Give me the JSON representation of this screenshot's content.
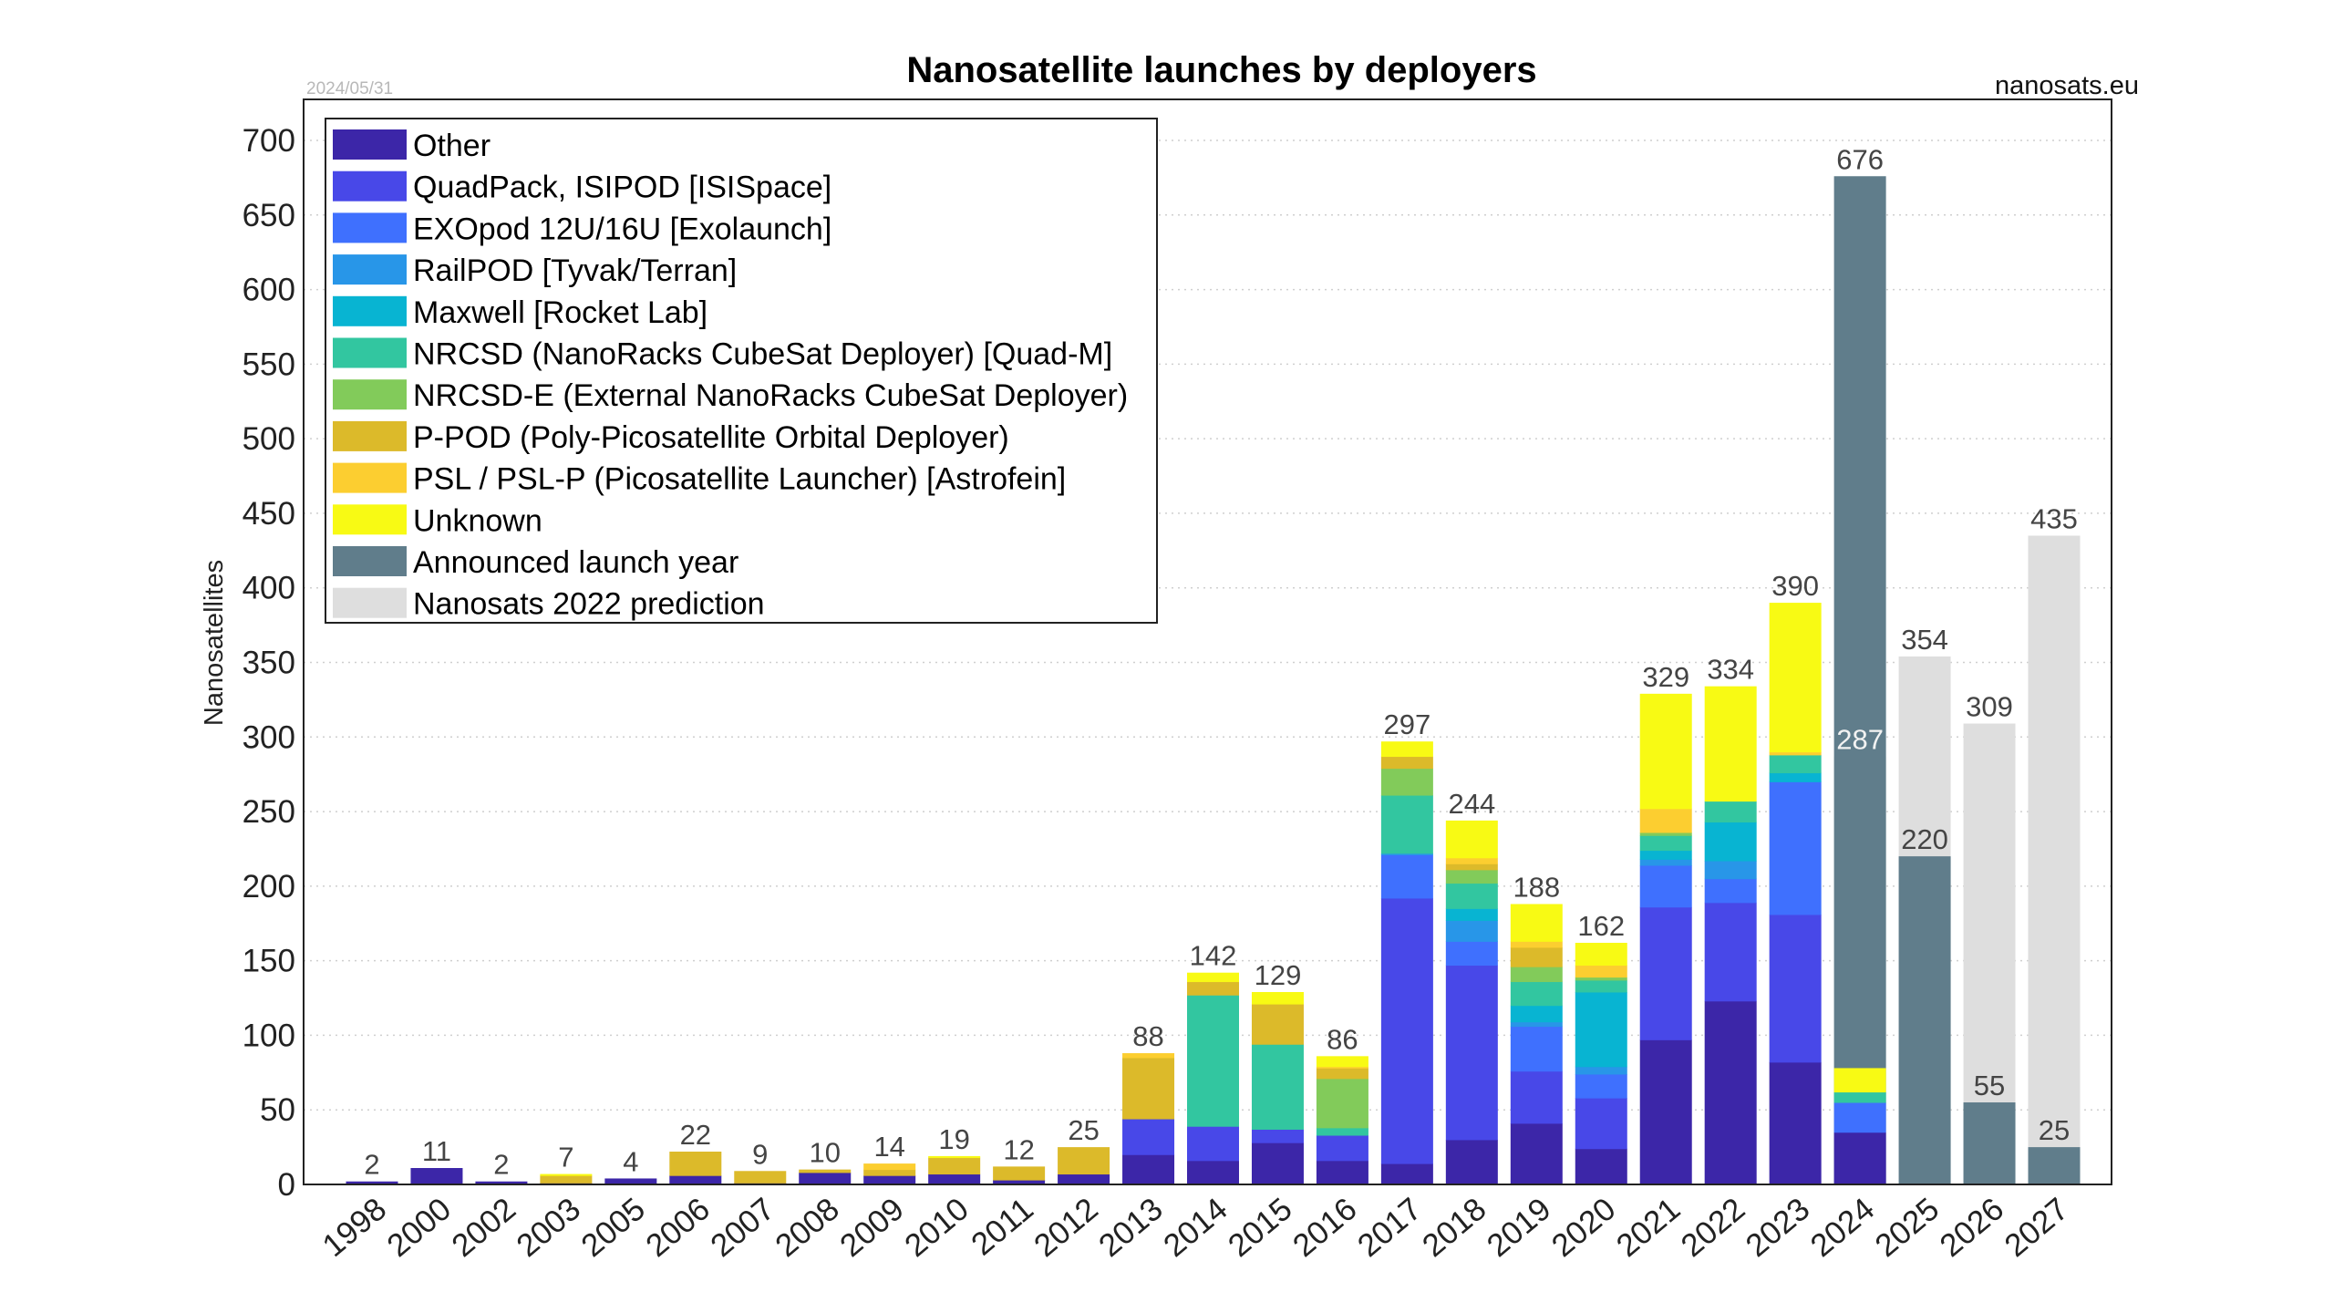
{
  "chart_data": {
    "type": "bar",
    "stacked": true,
    "title": "Nanosatellite launches by deployers",
    "date": "2024/05/31",
    "source": "nanosats.eu",
    "xlabel": "",
    "ylabel": "Nanosatellites",
    "ylim": [
      0,
      725
    ],
    "yticks": [
      0,
      50,
      100,
      150,
      200,
      250,
      300,
      350,
      400,
      450,
      500,
      550,
      600,
      650,
      700
    ],
    "grid": "horizontal-dotted",
    "legend_position": "top-left",
    "categories": [
      "1998",
      "2000",
      "2002",
      "2003",
      "2005",
      "2006",
      "2007",
      "2008",
      "2009",
      "2010",
      "2011",
      "2012",
      "2013",
      "2014",
      "2015",
      "2016",
      "2017",
      "2018",
      "2019",
      "2020",
      "2021",
      "2022",
      "2023",
      "2024",
      "2025",
      "2026",
      "2027"
    ],
    "series": [
      {
        "name": "Other",
        "color": "#3c26a8",
        "values": [
          2,
          11,
          2,
          1,
          4,
          6,
          1,
          8,
          6,
          7,
          3,
          7,
          20,
          16,
          28,
          16,
          14,
          30,
          41,
          24,
          97,
          123,
          82,
          35,
          0,
          0,
          0
        ]
      },
      {
        "name": "QuadPack, ISIPOD [ISISpace]",
        "color": "#4848e8",
        "values": [
          0,
          0,
          0,
          0,
          0,
          0,
          0,
          0,
          0,
          0,
          0,
          0,
          24,
          23,
          9,
          17,
          178,
          117,
          35,
          34,
          89,
          66,
          99,
          0,
          0,
          0,
          0
        ]
      },
      {
        "name": "EXOpod 12U/16U [Exolaunch]",
        "color": "#3f70fe",
        "values": [
          0,
          0,
          0,
          0,
          0,
          0,
          0,
          0,
          0,
          0,
          0,
          0,
          0,
          0,
          0,
          0,
          29,
          16,
          30,
          16,
          28,
          16,
          89,
          20,
          0,
          0,
          0
        ]
      },
      {
        "name": "RailPOD [Tyvak/Terran]",
        "color": "#2896e8",
        "values": [
          0,
          0,
          0,
          0,
          0,
          0,
          0,
          0,
          0,
          0,
          0,
          0,
          0,
          0,
          0,
          0,
          1,
          14,
          3,
          5,
          4,
          12,
          0,
          0,
          0,
          0,
          0
        ]
      },
      {
        "name": "Maxwell [Rocket Lab]",
        "color": "#08b4d2",
        "values": [
          0,
          0,
          0,
          0,
          0,
          0,
          0,
          0,
          0,
          0,
          0,
          0,
          0,
          0,
          0,
          0,
          0,
          8,
          11,
          50,
          6,
          26,
          6,
          0,
          0,
          0,
          0
        ]
      },
      {
        "name": "NRCSD (NanoRacks CubeSat Deployer)  [Quad-M]",
        "color": "#32c6a0",
        "values": [
          0,
          0,
          0,
          0,
          0,
          0,
          0,
          0,
          0,
          0,
          0,
          0,
          0,
          88,
          57,
          5,
          39,
          17,
          16,
          8,
          10,
          14,
          12,
          7,
          0,
          0,
          0
        ]
      },
      {
        "name": "NRCSD-E (External NanoRacks CubeSat Deployer)",
        "color": "#82cb5a",
        "values": [
          0,
          0,
          0,
          0,
          0,
          0,
          0,
          0,
          0,
          0,
          0,
          0,
          0,
          0,
          0,
          33,
          18,
          9,
          10,
          2,
          2,
          0,
          0,
          0,
          0,
          0,
          0
        ]
      },
      {
        "name": "P-POD (Poly-Picosatellite Orbital Deployer)",
        "color": "#dcba2a",
        "values": [
          0,
          0,
          0,
          5,
          0,
          16,
          8,
          2,
          4,
          11,
          9,
          18,
          41,
          9,
          27,
          7,
          8,
          4,
          13,
          0,
          0,
          0,
          0,
          0,
          0,
          0,
          0
        ]
      },
      {
        "name": "PSL / PSL-P (Picosatellite Launcher) [Astrofein]",
        "color": "#fcce30",
        "values": [
          0,
          0,
          0,
          0,
          0,
          0,
          0,
          0,
          4,
          0,
          0,
          0,
          3,
          0,
          0,
          1,
          0,
          4,
          4,
          8,
          16,
          0,
          2,
          0,
          0,
          0,
          0
        ]
      },
      {
        "name": "Unknown",
        "color": "#f8fa14",
        "values": [
          0,
          0,
          0,
          1,
          0,
          0,
          0,
          0,
          0,
          1,
          0,
          0,
          0,
          6,
          8,
          7,
          10,
          25,
          25,
          15,
          77,
          77,
          100,
          16,
          0,
          0,
          0
        ]
      },
      {
        "name": "Announced launch year",
        "color": "#607d8b",
        "values": [
          null,
          null,
          null,
          null,
          null,
          null,
          null,
          null,
          null,
          null,
          null,
          null,
          null,
          null,
          null,
          null,
          null,
          null,
          null,
          null,
          null,
          null,
          null,
          676,
          220,
          55,
          25
        ]
      },
      {
        "name": "Nanosats 2022 prediction",
        "color": "#dedede",
        "values": [
          null,
          null,
          null,
          null,
          null,
          null,
          null,
          null,
          null,
          null,
          null,
          null,
          null,
          null,
          null,
          null,
          null,
          null,
          null,
          null,
          null,
          null,
          null,
          287,
          354,
          309,
          435
        ]
      }
    ],
    "totals": [
      2,
      11,
      2,
      7,
      4,
      22,
      9,
      10,
      14,
      19,
      12,
      25,
      88,
      142,
      129,
      86,
      297,
      244,
      188,
      162,
      329,
      334,
      390,
      676,
      354,
      309,
      435
    ],
    "inner_labels": {
      "2024": "287",
      "2025": "220",
      "2026": "55",
      "2027": "25"
    }
  }
}
